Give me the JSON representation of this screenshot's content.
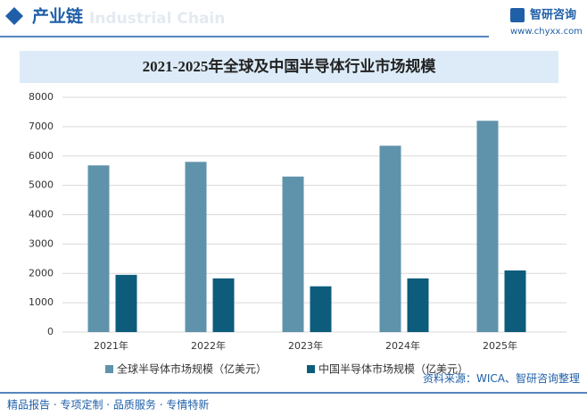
{
  "header": {
    "title": "产业链",
    "subtitle": "Industrial Chain",
    "logo": "智研咨询",
    "website": "www.chyxx.com"
  },
  "chart_data": {
    "type": "bar",
    "title": "2021-2025年全球及中国半导体行业市场规模",
    "categories": [
      "2021年",
      "2022年",
      "2023年",
      "2024年",
      "2025年"
    ],
    "series": [
      {
        "name": "全球半导体市场规模（亿美元）",
        "color": "#5f93ab",
        "values": [
          5680,
          5800,
          5300,
          6350,
          7200
        ]
      },
      {
        "name": "中国半导体市场规模（亿美元）",
        "color": "#0e5c7b",
        "values": [
          1950,
          1830,
          1560,
          1830,
          2100
        ]
      }
    ],
    "ylim": [
      0,
      8000
    ],
    "yticks": [
      0,
      1000,
      2000,
      3000,
      4000,
      5000,
      6000,
      7000,
      8000
    ],
    "grid": true
  },
  "footer": {
    "slogan": "精品报告 · 专项定制 · 品质服务 · 专情特新",
    "source": "资料来源：WICA、智研咨询整理"
  }
}
